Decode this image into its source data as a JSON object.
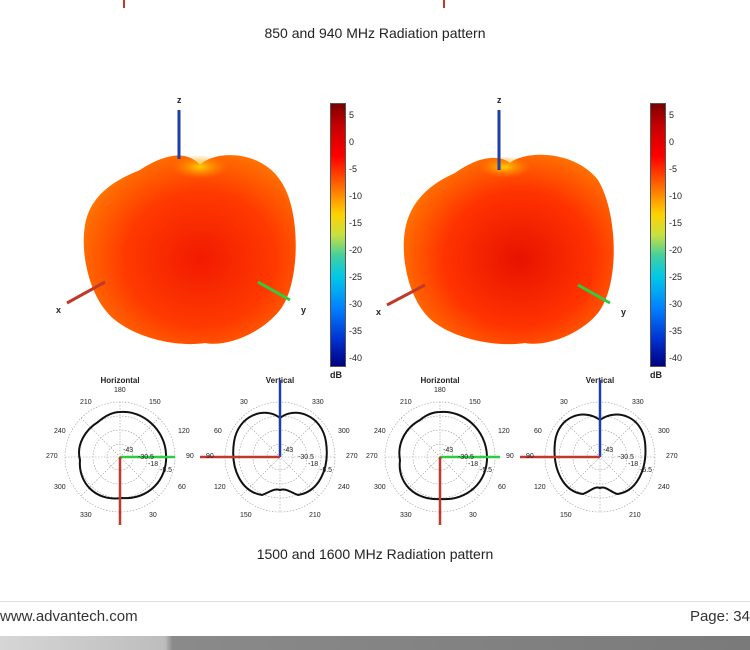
{
  "captions": {
    "top": "850 and 940 MHz Radiation pattern",
    "bottom": "1500 and 1600 MHz Radiation pattern"
  },
  "panels": [
    {
      "axes": {
        "z": "z",
        "x": "x",
        "y": "y"
      },
      "colorbar": {
        "ticks": [
          "5",
          "0",
          "-5",
          "-10",
          "-15",
          "-20",
          "-25",
          "-30",
          "-35",
          "-40"
        ],
        "unit": "dB"
      },
      "horizontal": {
        "title": "Horizontal",
        "angles": [
          "180",
          "150",
          "120",
          "90",
          "60",
          "30",
          "330",
          "300",
          "270",
          "240",
          "210"
        ],
        "rings": [
          "-43",
          "-30.5",
          "-18",
          "-5.5"
        ]
      },
      "vertical": {
        "title": "Vertical",
        "angles": [
          "330",
          "300",
          "270",
          "240",
          "210",
          "150",
          "120",
          "90",
          "60",
          "30"
        ],
        "rings": [
          "-43",
          "-30.5",
          "-18",
          "-5.5"
        ]
      }
    },
    {
      "axes": {
        "z": "z",
        "x": "x",
        "y": "y"
      },
      "colorbar": {
        "ticks": [
          "5",
          "0",
          "-5",
          "-10",
          "-15",
          "-20",
          "-25",
          "-30",
          "-35",
          "-40"
        ],
        "unit": "dB"
      },
      "horizontal": {
        "title": "Horizontal",
        "angles": [
          "180",
          "150",
          "120",
          "90",
          "60",
          "30",
          "330",
          "300",
          "270",
          "240",
          "210"
        ],
        "rings": [
          "-43",
          "-30.5",
          "-18",
          "-5.5"
        ]
      },
      "vertical": {
        "title": "Vertical",
        "angles": [
          "330",
          "300",
          "270",
          "240",
          "210",
          "150",
          "120",
          "90",
          "60",
          "30"
        ],
        "rings": [
          "-43",
          "-30.5",
          "-18",
          "-5.5"
        ]
      }
    }
  ],
  "footer": {
    "website": "www.advantech.com",
    "page": "Page: 34"
  },
  "colors": {
    "pattern_red": "#ff2a00",
    "pattern_orange": "#ff8c00",
    "axis_x": "#c0392b",
    "axis_y": "#2ecc40",
    "axis_z": "#1f3fa8"
  }
}
